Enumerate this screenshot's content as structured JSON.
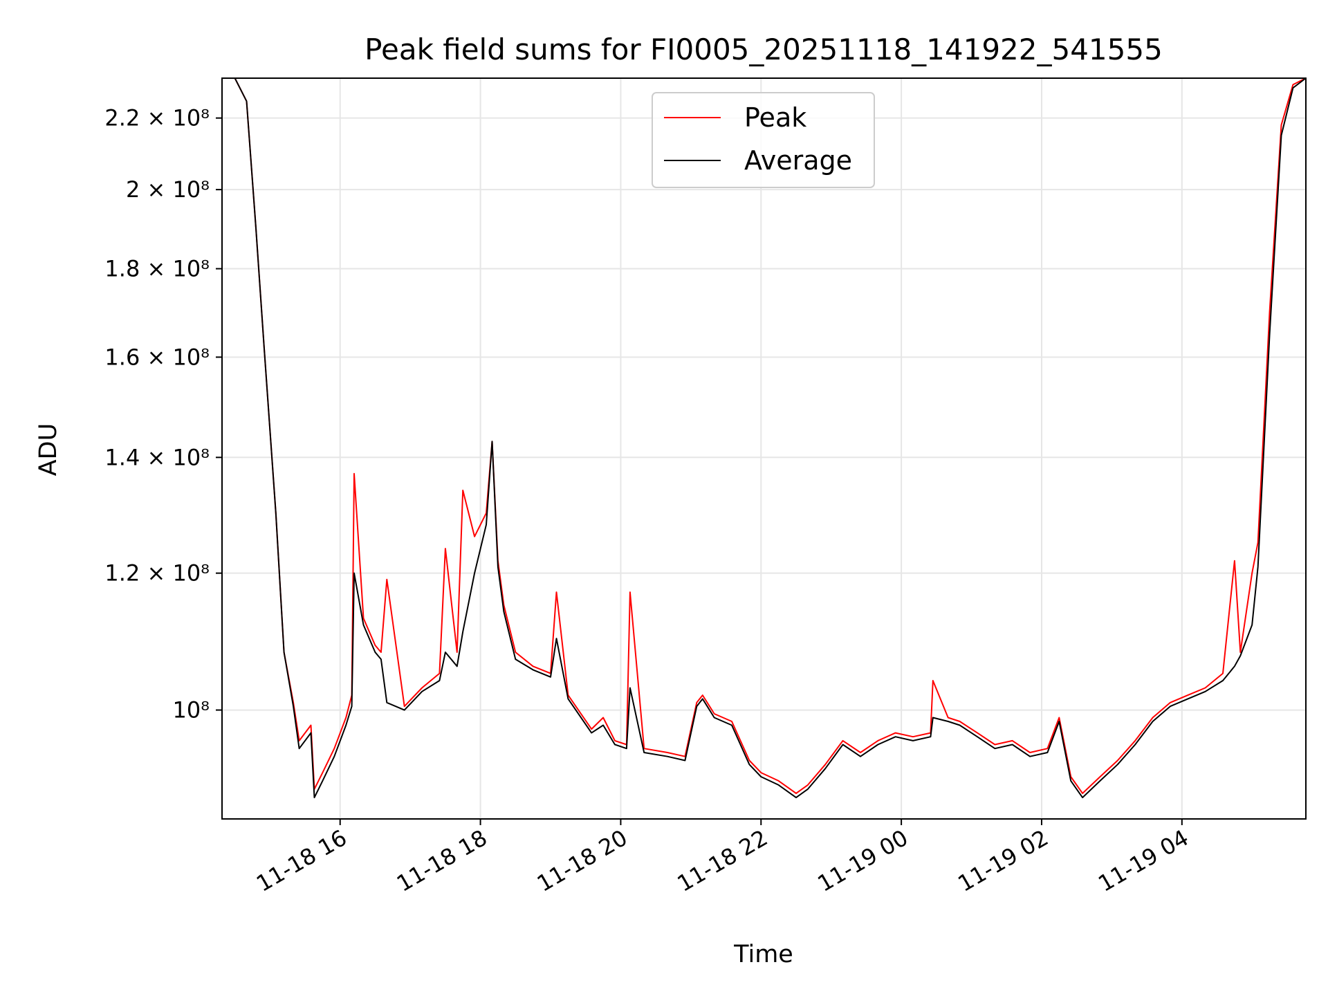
{
  "chart_data": {
    "type": "line",
    "title": "Peak field sums for FI0005_20251118_141922_541555",
    "xlabel": "Time",
    "ylabel": "ADU",
    "x_range": [
      "2025-11-18 14:19",
      "2025-11-19 05:46"
    ],
    "ylim": [
      86500000,
      232000000
    ],
    "y_scale": "log",
    "grid": true,
    "legend_position": "upper center",
    "x_ticks": [
      {
        "value": "2025-11-18 16:00",
        "label": "11-18 16"
      },
      {
        "value": "2025-11-18 18:00",
        "label": "11-18 18"
      },
      {
        "value": "2025-11-18 20:00",
        "label": "11-18 20"
      },
      {
        "value": "2025-11-18 22:00",
        "label": "11-18 22"
      },
      {
        "value": "2025-11-19 00:00",
        "label": "11-19 00"
      },
      {
        "value": "2025-11-19 02:00",
        "label": "11-19 02"
      },
      {
        "value": "2025-11-19 04:00",
        "label": "11-19 04"
      }
    ],
    "y_ticks": [
      {
        "value": 100000000,
        "label": "10⁸"
      },
      {
        "value": 120000000,
        "label": "1.2 × 10⁸"
      },
      {
        "value": 140000000,
        "label": "1.4 × 10⁸"
      },
      {
        "value": 160000000,
        "label": "1.6 × 10⁸"
      },
      {
        "value": 180000000,
        "label": "1.8 × 10⁸"
      },
      {
        "value": 200000000,
        "label": "2 × 10⁸"
      },
      {
        "value": 220000000,
        "label": "2.2 × 10⁸"
      }
    ],
    "series": [
      {
        "name": "Peak",
        "color": "#ff0000",
        "x": [
          "2025-11-18 14:19",
          "2025-11-18 14:30",
          "2025-11-18 14:40",
          "2025-11-18 14:48",
          "2025-11-18 14:55",
          "2025-11-18 15:05",
          "2025-11-18 15:12",
          "2025-11-18 15:20",
          "2025-11-18 15:25",
          "2025-11-18 15:35",
          "2025-11-18 15:38",
          "2025-11-18 15:45",
          "2025-11-18 15:55",
          "2025-11-18 16:05",
          "2025-11-18 16:10",
          "2025-11-18 16:12",
          "2025-11-18 16:20",
          "2025-11-18 16:30",
          "2025-11-18 16:35",
          "2025-11-18 16:40",
          "2025-11-18 16:55",
          "2025-11-18 17:10",
          "2025-11-18 17:25",
          "2025-11-18 17:30",
          "2025-11-18 17:40",
          "2025-11-18 17:45",
          "2025-11-18 17:55",
          "2025-11-18 18:05",
          "2025-11-18 18:10",
          "2025-11-18 18:15",
          "2025-11-18 18:20",
          "2025-11-18 18:30",
          "2025-11-18 18:45",
          "2025-11-18 19:00",
          "2025-11-18 19:05",
          "2025-11-18 19:15",
          "2025-11-18 19:35",
          "2025-11-18 19:45",
          "2025-11-18 19:55",
          "2025-11-18 20:05",
          "2025-11-18 20:08",
          "2025-11-18 20:20",
          "2025-11-18 20:40",
          "2025-11-18 20:55",
          "2025-11-18 21:05",
          "2025-11-18 21:10",
          "2025-11-18 21:20",
          "2025-11-18 21:35",
          "2025-11-18 21:50",
          "2025-11-18 22:00",
          "2025-11-18 22:15",
          "2025-11-18 22:30",
          "2025-11-18 22:40",
          "2025-11-18 22:55",
          "2025-11-18 23:10",
          "2025-11-18 23:25",
          "2025-11-18 23:40",
          "2025-11-18 23:55",
          "2025-11-19 00:10",
          "2025-11-19 00:25",
          "2025-11-19 00:27",
          "2025-11-19 00:40",
          "2025-11-19 00:50",
          "2025-11-19 01:05",
          "2025-11-19 01:20",
          "2025-11-19 01:35",
          "2025-11-19 01:50",
          "2025-11-19 02:05",
          "2025-11-19 02:15",
          "2025-11-19 02:25",
          "2025-11-19 02:35",
          "2025-11-19 02:50",
          "2025-11-19 03:05",
          "2025-11-19 03:20",
          "2025-11-19 03:35",
          "2025-11-19 03:50",
          "2025-11-19 04:05",
          "2025-11-19 04:20",
          "2025-11-19 04:35",
          "2025-11-19 04:45",
          "2025-11-19 04:50",
          "2025-11-19 05:00",
          "2025-11-19 05:05",
          "2025-11-19 05:15",
          "2025-11-19 05:25",
          "2025-11-19 05:35",
          "2025-11-19 05:46"
        ],
        "y": [
          232000000,
          232000000,
          225000000,
          190000000,
          162000000,
          130000000,
          108000000,
          101000000,
          96000000,
          98000000,
          90000000,
          92000000,
          95000000,
          99000000,
          102000000,
          137000000,
          113000000,
          109000000,
          108000000,
          119000000,
          100500000,
          103000000,
          105000000,
          124000000,
          108000000,
          134000000,
          126000000,
          130000000,
          143000000,
          122000000,
          115000000,
          108000000,
          106000000,
          105000000,
          117000000,
          102000000,
          97500000,
          99000000,
          96000000,
          95500000,
          117000000,
          95000000,
          94500000,
          94000000,
          101000000,
          102000000,
          99500000,
          98500000,
          93500000,
          92000000,
          91000000,
          89500000,
          90500000,
          93000000,
          96000000,
          94500000,
          96000000,
          97000000,
          96500000,
          97000000,
          104000000,
          99000000,
          98500000,
          97000000,
          95500000,
          96000000,
          94500000,
          95000000,
          99000000,
          91500000,
          89500000,
          91500000,
          93500000,
          96000000,
          99000000,
          101000000,
          102000000,
          103000000,
          105000000,
          122000000,
          108000000,
          120000000,
          125000000,
          170000000,
          218000000,
          230000000,
          232000000
        ]
      },
      {
        "name": "Average",
        "color": "#000000",
        "x": [
          "2025-11-18 14:19",
          "2025-11-18 14:30",
          "2025-11-18 14:40",
          "2025-11-18 14:48",
          "2025-11-18 14:55",
          "2025-11-18 15:05",
          "2025-11-18 15:12",
          "2025-11-18 15:20",
          "2025-11-18 15:25",
          "2025-11-18 15:35",
          "2025-11-18 15:38",
          "2025-11-18 15:45",
          "2025-11-18 15:55",
          "2025-11-18 16:05",
          "2025-11-18 16:10",
          "2025-11-18 16:12",
          "2025-11-18 16:20",
          "2025-11-18 16:30",
          "2025-11-18 16:35",
          "2025-11-18 16:40",
          "2025-11-18 16:55",
          "2025-11-18 17:10",
          "2025-11-18 17:25",
          "2025-11-18 17:30",
          "2025-11-18 17:40",
          "2025-11-18 17:45",
          "2025-11-18 17:55",
          "2025-11-18 18:05",
          "2025-11-18 18:10",
          "2025-11-18 18:15",
          "2025-11-18 18:20",
          "2025-11-18 18:30",
          "2025-11-18 18:45",
          "2025-11-18 19:00",
          "2025-11-18 19:05",
          "2025-11-18 19:15",
          "2025-11-18 19:35",
          "2025-11-18 19:45",
          "2025-11-18 19:55",
          "2025-11-18 20:05",
          "2025-11-18 20:08",
          "2025-11-18 20:20",
          "2025-11-18 20:40",
          "2025-11-18 20:55",
          "2025-11-18 21:05",
          "2025-11-18 21:10",
          "2025-11-18 21:20",
          "2025-11-18 21:35",
          "2025-11-18 21:50",
          "2025-11-18 22:00",
          "2025-11-18 22:15",
          "2025-11-18 22:30",
          "2025-11-18 22:40",
          "2025-11-18 22:55",
          "2025-11-18 23:10",
          "2025-11-18 23:25",
          "2025-11-18 23:40",
          "2025-11-18 23:55",
          "2025-11-19 00:10",
          "2025-11-19 00:25",
          "2025-11-19 00:27",
          "2025-11-19 00:40",
          "2025-11-19 00:50",
          "2025-11-19 01:05",
          "2025-11-19 01:20",
          "2025-11-19 01:35",
          "2025-11-19 01:50",
          "2025-11-19 02:05",
          "2025-11-19 02:15",
          "2025-11-19 02:25",
          "2025-11-19 02:35",
          "2025-11-19 02:50",
          "2025-11-19 03:05",
          "2025-11-19 03:20",
          "2025-11-19 03:35",
          "2025-11-19 03:50",
          "2025-11-19 04:05",
          "2025-11-19 04:20",
          "2025-11-19 04:35",
          "2025-11-19 04:45",
          "2025-11-19 04:50",
          "2025-11-19 05:00",
          "2025-11-19 05:05",
          "2025-11-19 05:15",
          "2025-11-19 05:25",
          "2025-11-19 05:35",
          "2025-11-19 05:46"
        ],
        "y": [
          232000000,
          232000000,
          225000000,
          190000000,
          162000000,
          130000000,
          108000000,
          100500000,
          95000000,
          97000000,
          89000000,
          91000000,
          94000000,
          98000000,
          100500000,
          120000000,
          112000000,
          108000000,
          107000000,
          101000000,
          100000000,
          102500000,
          104000000,
          108000000,
          106000000,
          111000000,
          120000000,
          128000000,
          143000000,
          121000000,
          114000000,
          107000000,
          105500000,
          104500000,
          110000000,
          101500000,
          97000000,
          98000000,
          95500000,
          95000000,
          103000000,
          94500000,
          94000000,
          93500000,
          100500000,
          101500000,
          99000000,
          98000000,
          93000000,
          91500000,
          90500000,
          89000000,
          90000000,
          92500000,
          95500000,
          94000000,
          95500000,
          96500000,
          96000000,
          96500000,
          99000000,
          98500000,
          98000000,
          96500000,
          95000000,
          95500000,
          94000000,
          94500000,
          98500000,
          91000000,
          89000000,
          91000000,
          93000000,
          95500000,
          98500000,
          100500000,
          101500000,
          102500000,
          104000000,
          106000000,
          107500000,
          112000000,
          121000000,
          165000000,
          215000000,
          229000000,
          232000000
        ]
      }
    ]
  }
}
